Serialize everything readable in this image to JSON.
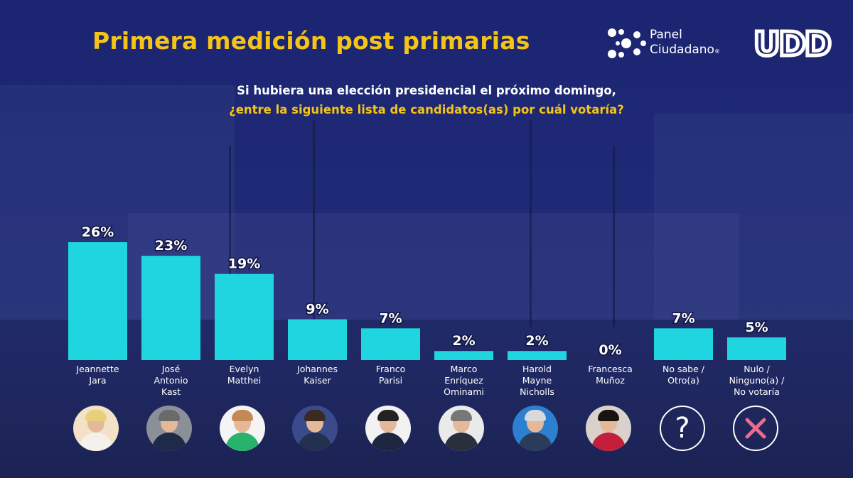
{
  "title": "Primera medición post primarias",
  "subtitle_line1": "Si hubiera una elección presidencial el próximo domingo,",
  "subtitle_line2": "¿entre la siguiente lista de candidatos(as) por cuál votaría?",
  "logos": {
    "panel_line1": "Panel",
    "panel_line2": "Ciudadano",
    "panel_mark": "®",
    "udd": "UDD"
  },
  "colors": {
    "bar": "#1fd6e0",
    "title": "#f5c418",
    "background": "#1f2a76",
    "nulo_icon": "#f06a8a"
  },
  "icons": [
    "question-icon",
    "cross-icon"
  ],
  "chart_data": {
    "type": "bar",
    "title": "Primera medición post primarias",
    "xlabel": "",
    "ylabel": "",
    "ylim": [
      0,
      26
    ],
    "grid": false,
    "categories": [
      [
        "Jeannette",
        "Jara"
      ],
      [
        "José",
        "Antonio",
        "Kast"
      ],
      [
        "Evelyn",
        "Matthei"
      ],
      [
        "Johannes",
        "Kaiser"
      ],
      [
        "Franco",
        "Parisi"
      ],
      [
        "Marco",
        "Enríquez",
        "Ominami"
      ],
      [
        "Harold",
        "Mayne",
        "Nicholls"
      ],
      [
        "Francesca",
        "Muñoz"
      ],
      [
        "No sabe /",
        "Otro(a)"
      ],
      [
        "Nulo /",
        "Ninguno(a) /",
        "No votaría"
      ]
    ],
    "values": [
      26,
      23,
      19,
      9,
      7,
      2,
      2,
      0,
      7,
      5
    ],
    "labels": [
      "26%",
      "23%",
      "19%",
      "9%",
      "7%",
      "2%",
      "2%",
      "0%",
      "7%",
      "5%"
    ]
  }
}
